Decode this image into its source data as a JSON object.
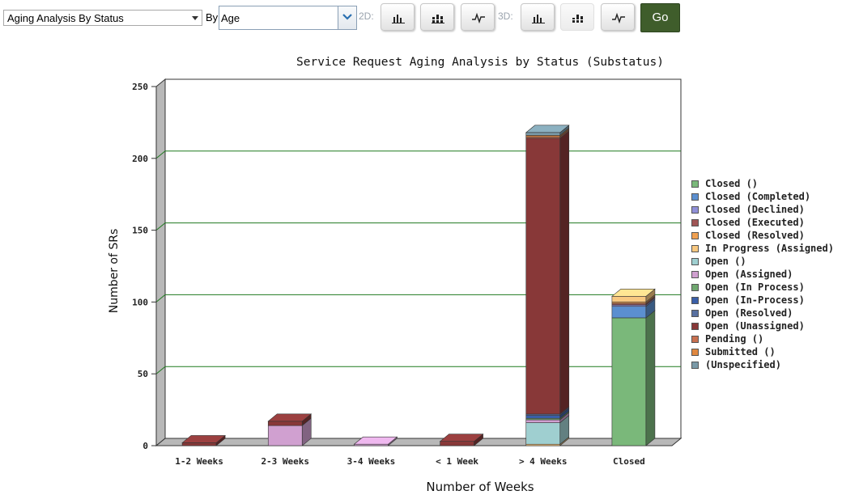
{
  "toolbar": {
    "analysis_select": "Aging Analysis By Status",
    "by_label": "By",
    "by_value": "Age",
    "label_2d": "2D:",
    "label_3d": "3D:",
    "go_label": "Go"
  },
  "icons": {
    "bar_2d": "bar-chart-icon",
    "stacked_2d": "stacked-bar-icon",
    "line_2d": "line-chart-icon",
    "bar_3d": "bar-chart-icon",
    "stacked_3d": "stacked-bar-icon",
    "line_3d": "line-chart-icon"
  },
  "chart_data": {
    "type": "bar",
    "stacked": true,
    "title": "Service Request Aging Analysis by Status (Substatus)",
    "xlabel": "Number of Weeks",
    "ylabel": "Number of SRs",
    "ylim": [
      0,
      250
    ],
    "yticks": [
      0,
      50,
      100,
      150,
      200,
      250
    ],
    "grid": true,
    "legend_position": "right",
    "categories": [
      "1-2 Weeks",
      "2-3 Weeks",
      "3-4 Weeks",
      "< 1 Week",
      "> 4 Weeks",
      "Closed"
    ],
    "series": [
      {
        "name": "Closed ()",
        "color": "#7ab87a",
        "values": [
          0,
          0,
          0,
          0,
          0,
          89
        ]
      },
      {
        "name": "Closed (Completed)",
        "color": "#5b8fd0",
        "values": [
          0,
          0,
          0,
          0,
          0,
          8
        ]
      },
      {
        "name": "Closed (Declined)",
        "color": "#9090d8",
        "values": [
          0,
          0,
          0,
          0,
          0,
          1
        ]
      },
      {
        "name": "Closed (Executed)",
        "color": "#a05555",
        "values": [
          0,
          0,
          0,
          0,
          0,
          1
        ]
      },
      {
        "name": "Closed (Resolved)",
        "color": "#f0a050",
        "values": [
          0,
          0,
          0,
          0,
          0,
          1
        ]
      },
      {
        "name": "In Progress (Assigned)",
        "color": "#f8c880",
        "values": [
          0,
          0,
          0,
          0,
          1,
          4
        ]
      },
      {
        "name": "Open ()",
        "color": "#9fcfd0",
        "values": [
          0,
          0,
          0,
          0,
          15,
          0
        ]
      },
      {
        "name": "Open (Assigned)",
        "color": "#d0a0d0",
        "values": [
          0,
          14,
          1,
          0,
          2,
          0
        ]
      },
      {
        "name": "Open (In Process)",
        "color": "#70a870",
        "values": [
          0,
          0,
          0,
          0,
          1,
          0
        ]
      },
      {
        "name": "Open (In-Process)",
        "color": "#3a5fa8",
        "values": [
          0,
          0,
          0,
          0,
          2,
          0
        ]
      },
      {
        "name": "Open (Resolved)",
        "color": "#5870a0",
        "values": [
          0,
          0,
          0,
          0,
          1,
          0
        ]
      },
      {
        "name": "Open (Unassigned)",
        "color": "#883838",
        "values": [
          2,
          3,
          0,
          3,
          192,
          0
        ]
      },
      {
        "name": "Pending ()",
        "color": "#c87050",
        "values": [
          0,
          0,
          0,
          0,
          1,
          0
        ]
      },
      {
        "name": "Submitted ()",
        "color": "#e08840",
        "values": [
          0,
          0,
          0,
          0,
          1,
          0
        ]
      },
      {
        "name": "(Unspecified)",
        "color": "#7a9aa8",
        "values": [
          0,
          0,
          0,
          0,
          2,
          0
        ]
      }
    ]
  }
}
